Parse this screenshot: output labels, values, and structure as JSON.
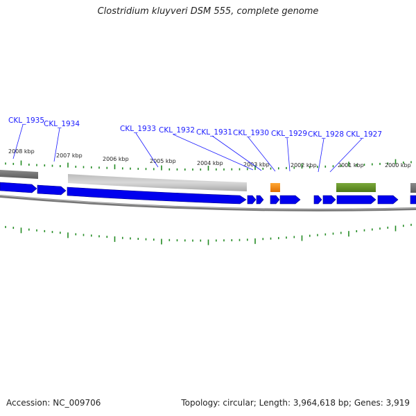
{
  "title": "Clostridium kluyveri DSM 555, complete genome",
  "footer": {
    "accession": "Accession: NC_009706",
    "summary": "Topology: circular; Length: 3,964,618 bp; Genes: 3,919"
  },
  "kbp_labels": [
    "2008 kbp",
    "2007 kbp",
    "2006 kbp",
    "2005 kbp",
    "2004 kbp",
    "2003 kbp",
    "2002 kbp",
    "2001 kbp",
    "2000 kbp"
  ],
  "gene_labels": [
    "CKL_1935",
    "CKL_1934",
    "CKL_1933",
    "CKL_1932",
    "CKL_1931",
    "CKL_1930",
    "CKL_1929",
    "CKL_1928",
    "CKL_1927"
  ],
  "colors": {
    "gene": "#0000ee",
    "gene_stroke": "#00008b",
    "tick": "#228b22",
    "feature_orange": "#ff8c00",
    "feature_green": "#5f8a1e",
    "label": "#1a1aff",
    "leader": "#1a1aff"
  }
}
